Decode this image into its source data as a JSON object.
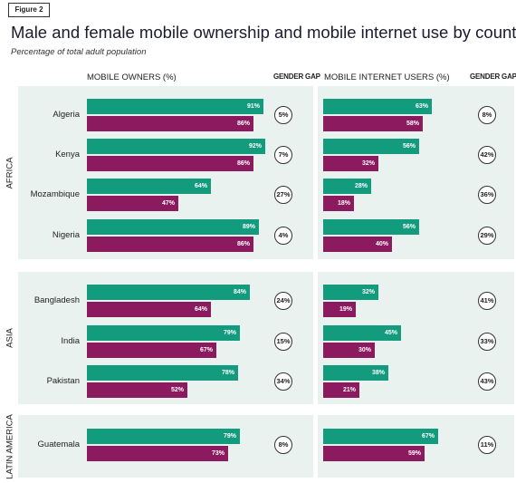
{
  "figure_label": "Figure 2",
  "chart_data": {
    "type": "bar",
    "title": "Male and female mobile ownership and mobile internet use by country",
    "subtitle": "Percentage of total adult population",
    "xlim": [
      0,
      100
    ],
    "panels": [
      {
        "heading": "MOBILE OWNERS (%)",
        "gap_heading": "GENDER GAP"
      },
      {
        "heading": "MOBILE INTERNET USERS (%)",
        "gap_heading": "GENDER GAP"
      }
    ],
    "groups": [
      {
        "region": "AFRICA",
        "countries": [
          {
            "name": "Algeria",
            "owners": {
              "male": 91,
              "female": 86,
              "gap": "5%"
            },
            "internet": {
              "male": 63,
              "female": 58,
              "gap": "8%"
            }
          },
          {
            "name": "Kenya",
            "owners": {
              "male": 92,
              "female": 86,
              "gap": "7%"
            },
            "internet": {
              "male": 56,
              "female": 32,
              "gap": "42%"
            }
          },
          {
            "name": "Mozambique",
            "owners": {
              "male": 64,
              "female": 47,
              "gap": "27%"
            },
            "internet": {
              "male": 28,
              "female": 18,
              "gap": "36%"
            }
          },
          {
            "name": "Nigeria",
            "owners": {
              "male": 89,
              "female": 86,
              "gap": "4%"
            },
            "internet": {
              "male": 56,
              "female": 40,
              "gap": "29%"
            }
          }
        ]
      },
      {
        "region": "ASIA",
        "countries": [
          {
            "name": "Bangladesh",
            "owners": {
              "male": 84,
              "female": 64,
              "gap": "24%"
            },
            "internet": {
              "male": 32,
              "female": 19,
              "gap": "41%"
            }
          },
          {
            "name": "India",
            "owners": {
              "male": 79,
              "female": 67,
              "gap": "15%"
            },
            "internet": {
              "male": 45,
              "female": 30,
              "gap": "33%"
            }
          },
          {
            "name": "Pakistan",
            "owners": {
              "male": 78,
              "female": 52,
              "gap": "34%"
            },
            "internet": {
              "male": 38,
              "female": 21,
              "gap": "43%"
            }
          }
        ]
      },
      {
        "region": "LATIN AMERICA",
        "countries": [
          {
            "name": "Guatemala",
            "owners": {
              "male": 79,
              "female": 73,
              "gap": "8%"
            },
            "internet": {
              "male": 67,
              "female": 59,
              "gap": "11%"
            }
          }
        ]
      }
    ],
    "colors": {
      "male": "#139b7e",
      "female": "#8c1a5e",
      "panel": "#e9f2ef"
    }
  }
}
